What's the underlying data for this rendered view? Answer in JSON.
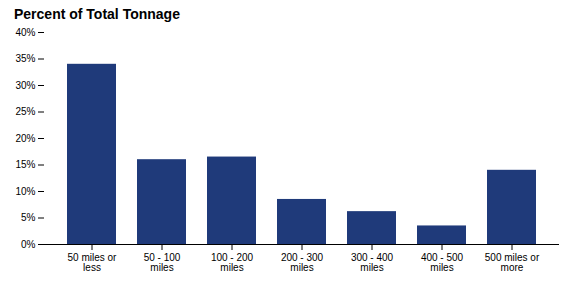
{
  "chart_data": {
    "type": "bar",
    "title": "Percent of Total Tonnage",
    "categories": [
      "50 miles or\nless",
      "50 - 100\nmiles",
      "100 - 200\nmiles",
      "200 - 300\nmiles",
      "300 - 400\nmiles",
      "400 - 500\nmiles",
      "500 miles or\nmore"
    ],
    "values": [
      0.34,
      0.16,
      0.165,
      0.085,
      0.062,
      0.035,
      0.14
    ],
    "color": "#1F3A7A",
    "ylim": [
      0,
      0.4
    ],
    "yticks": [
      {
        "value": 0.0,
        "label": "0%"
      },
      {
        "value": 0.05,
        "label": "5%"
      },
      {
        "value": 0.1,
        "label": "10%"
      },
      {
        "value": 0.15,
        "label": "15%"
      },
      {
        "value": 0.2,
        "label": "20%"
      },
      {
        "value": 0.25,
        "label": "25%"
      },
      {
        "value": 0.3,
        "label": "30%"
      },
      {
        "value": 0.35,
        "label": "35%"
      },
      {
        "value": 0.4,
        "label": "40%"
      }
    ],
    "grid": false
  }
}
